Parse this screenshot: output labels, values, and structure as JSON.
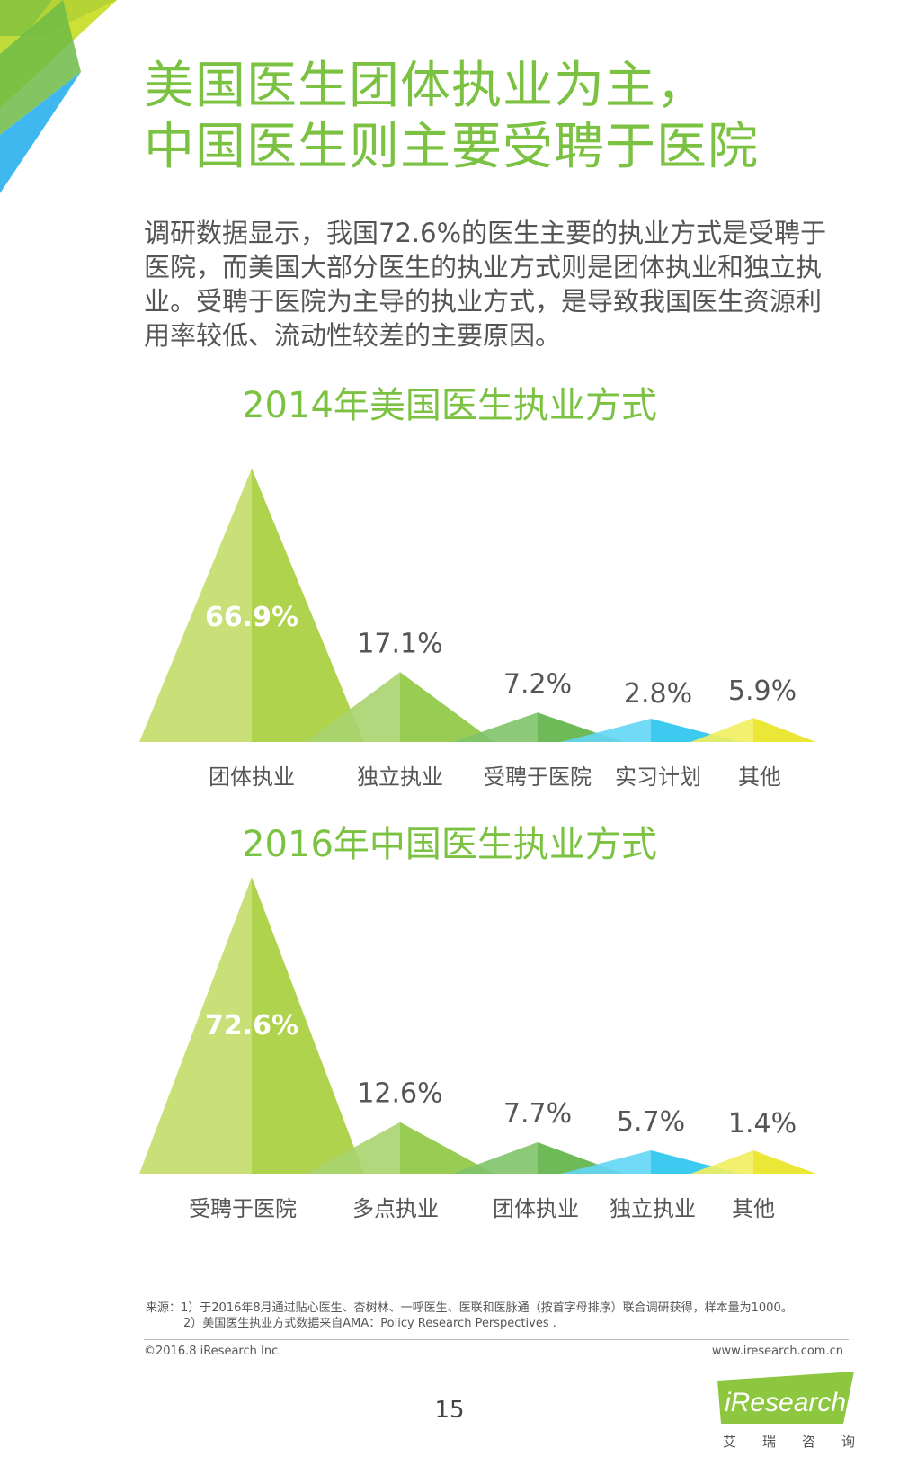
{
  "header": {
    "title_line1": "美国医生团体执业为主，",
    "title_line2": "中国医生则主要受聘于医院"
  },
  "intro_text": "调研数据显示，我国72.6%的医生主要的执业方式是受聘于医院，而美国大部分医生的执业方式则是团体执业和独立执业。受聘于医院为主导的执业方式，是导致我国医生资源利用率较低、流动性较差的主要原因。",
  "chart_data": [
    {
      "type": "bar",
      "title": "2014年美国医生执业方式",
      "categories": [
        "团体执业",
        "独立执业",
        "受聘于医院",
        "实习计划",
        "其他"
      ],
      "values": [
        66.9,
        17.1,
        7.2,
        2.8,
        5.9
      ],
      "value_labels": [
        "66.9%",
        "17.1%",
        "7.2%",
        "2.8%",
        "5.9%"
      ],
      "colors": [
        "#a6ce39",
        "#8dc63f",
        "#5fb246",
        "#27c4f0",
        "#e8e420"
      ]
    },
    {
      "type": "bar",
      "title": "2016年中国医生执业方式",
      "categories": [
        "受聘于医院",
        "多点执业",
        "团体执业",
        "独立执业",
        "其他"
      ],
      "values": [
        72.6,
        12.6,
        7.7,
        5.7,
        1.4
      ],
      "value_labels": [
        "72.6%",
        "12.6%",
        "7.7%",
        "5.7%",
        "1.4%"
      ],
      "colors": [
        "#a6ce39",
        "#8dc63f",
        "#5fb246",
        "#27c4f0",
        "#e8e420"
      ]
    }
  ],
  "footer": {
    "source_line1": "来源：1）于2016年8月通过贴心医生、杏树林、一呼医生、医联和医脉通（按首字母排序）联合调研获得，样本量为1000。",
    "source_line2": "2）美国医生执业方式数据来自AMA：Policy  Research Perspectives .",
    "copyright": "©2016.8 iResearch Inc.",
    "website": "www.iresearch.com.cn",
    "page_number": "15",
    "logo_text": "iResearch",
    "logo_sub": "艾瑞咨询"
  }
}
